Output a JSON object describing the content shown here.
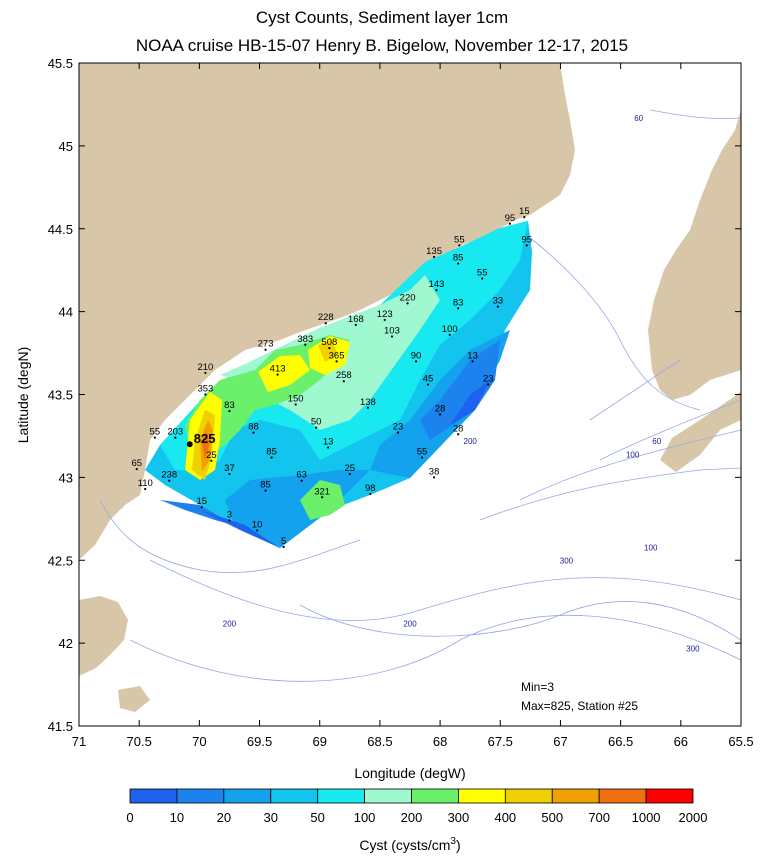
{
  "title": "Cyst Counts, Sediment layer 1cm",
  "subtitle": "NOAA cruise HB-15-07 Henry B. Bigelow, November 12-17, 2015",
  "axes": {
    "xlabel": "Longitude (degW)",
    "ylabel": "Latitude (degN)",
    "xticks": [
      "71",
      "70.5",
      "70",
      "69.5",
      "69",
      "68.5",
      "68",
      "67.5",
      "67",
      "66.5",
      "66",
      "65.5"
    ],
    "yticks": [
      "45.5",
      "45",
      "44.5",
      "44",
      "43.5",
      "43",
      "42.5",
      "42",
      "41.5"
    ]
  },
  "colors": {
    "land": "#d8c6a8",
    "isobath": "#9aa6e6",
    "scale": [
      "#1e62f0",
      "#1c82ee",
      "#14a2ee",
      "#12c4ee",
      "#18e8f0",
      "#a0f8d0",
      "#6af06a",
      "#ffff00",
      "#f0d000",
      "#f0a000",
      "#f07010",
      "#ff0000"
    ]
  },
  "colorbar": {
    "labels": [
      "0",
      "10",
      "20",
      "30",
      "50",
      "100",
      "200",
      "300",
      "400",
      "500",
      "700",
      "1000",
      "2000"
    ],
    "label": "Cyst (cysts/cm",
    "label_sup": "3",
    "label_end": ")"
  },
  "annotations": {
    "min": "Min=3",
    "max": "Max=825, Station #25",
    "highlight": "825"
  },
  "depth_labels": [
    {
      "text": "60",
      "lon": 66.35,
      "lat": 45.15
    },
    {
      "text": "200",
      "lon": 67.75,
      "lat": 43.2
    },
    {
      "text": "60",
      "lon": 66.2,
      "lat": 43.2
    },
    {
      "text": "100",
      "lon": 66.4,
      "lat": 43.12
    },
    {
      "text": "100",
      "lon": 66.25,
      "lat": 42.56
    },
    {
      "text": "300",
      "lon": 66.95,
      "lat": 42.48
    },
    {
      "text": "200",
      "lon": 69.75,
      "lat": 42.1
    },
    {
      "text": "200",
      "lon": 68.25,
      "lat": 42.1
    },
    {
      "text": "300",
      "lon": 65.9,
      "lat": 41.95
    }
  ],
  "stations": [
    {
      "label": "15",
      "lon": 67.3,
      "lat": 44.57
    },
    {
      "label": "95",
      "lon": 67.42,
      "lat": 44.53
    },
    {
      "label": "95",
      "lon": 67.28,
      "lat": 44.4
    },
    {
      "label": "55",
      "lon": 67.84,
      "lat": 44.4
    },
    {
      "label": "135",
      "lon": 68.05,
      "lat": 44.33
    },
    {
      "label": "85",
      "lon": 67.85,
      "lat": 44.29
    },
    {
      "label": "55",
      "lon": 67.65,
      "lat": 44.2
    },
    {
      "label": "143",
      "lon": 68.03,
      "lat": 44.13
    },
    {
      "label": "220",
      "lon": 68.27,
      "lat": 44.05
    },
    {
      "label": "83",
      "lon": 67.85,
      "lat": 44.02
    },
    {
      "label": "33",
      "lon": 67.52,
      "lat": 44.03
    },
    {
      "label": "228",
      "lon": 68.95,
      "lat": 43.93
    },
    {
      "label": "168",
      "lon": 68.7,
      "lat": 43.92
    },
    {
      "label": "123",
      "lon": 68.46,
      "lat": 43.95
    },
    {
      "label": "103",
      "lon": 68.4,
      "lat": 43.85
    },
    {
      "label": "100",
      "lon": 67.92,
      "lat": 43.86
    },
    {
      "label": "273",
      "lon": 69.45,
      "lat": 43.77
    },
    {
      "label": "383",
      "lon": 69.12,
      "lat": 43.8
    },
    {
      "label": "508",
      "lon": 68.92,
      "lat": 43.78
    },
    {
      "label": "365",
      "lon": 68.86,
      "lat": 43.7
    },
    {
      "label": "90",
      "lon": 68.2,
      "lat": 43.7
    },
    {
      "label": "13",
      "lon": 67.73,
      "lat": 43.7
    },
    {
      "label": "210",
      "lon": 69.95,
      "lat": 43.63
    },
    {
      "label": "413",
      "lon": 69.35,
      "lat": 43.62
    },
    {
      "label": "258",
      "lon": 68.8,
      "lat": 43.58
    },
    {
      "label": "45",
      "lon": 68.1,
      "lat": 43.56
    },
    {
      "label": "23",
      "lon": 67.6,
      "lat": 43.56
    },
    {
      "label": "353",
      "lon": 69.95,
      "lat": 43.5
    },
    {
      "label": "150",
      "lon": 69.2,
      "lat": 43.44
    },
    {
      "label": "138",
      "lon": 68.6,
      "lat": 43.42
    },
    {
      "label": "83",
      "lon": 69.75,
      "lat": 43.4
    },
    {
      "label": "28",
      "lon": 68.0,
      "lat": 43.38
    },
    {
      "label": "50",
      "lon": 69.03,
      "lat": 43.3
    },
    {
      "label": "88",
      "lon": 69.55,
      "lat": 43.27
    },
    {
      "label": "23",
      "lon": 68.35,
      "lat": 43.27
    },
    {
      "label": "28",
      "lon": 67.85,
      "lat": 43.26
    },
    {
      "label": "55",
      "lon": 70.37,
      "lat": 43.24
    },
    {
      "label": "203",
      "lon": 70.2,
      "lat": 43.24
    },
    {
      "label": "13",
      "lon": 68.93,
      "lat": 43.18
    },
    {
      "label": "85",
      "lon": 69.4,
      "lat": 43.12
    },
    {
      "label": "55",
      "lon": 68.15,
      "lat": 43.12
    },
    {
      "label": "25",
      "lon": 69.9,
      "lat": 43.1
    },
    {
      "label": "25",
      "lon": 68.75,
      "lat": 43.02
    },
    {
      "label": "38",
      "lon": 68.05,
      "lat": 43.0
    },
    {
      "label": "65",
      "lon": 70.52,
      "lat": 43.05
    },
    {
      "label": "37",
      "lon": 69.75,
      "lat": 43.02
    },
    {
      "label": "63",
      "lon": 69.15,
      "lat": 42.98
    },
    {
      "label": "238",
      "lon": 70.25,
      "lat": 42.98
    },
    {
      "label": "85",
      "lon": 69.45,
      "lat": 42.92
    },
    {
      "label": "98",
      "lon": 68.58,
      "lat": 42.9
    },
    {
      "label": "110",
      "lon": 70.45,
      "lat": 42.93
    },
    {
      "label": "321",
      "lon": 68.98,
      "lat": 42.88
    },
    {
      "label": "15",
      "lon": 69.98,
      "lat": 42.82
    },
    {
      "label": "3",
      "lon": 69.75,
      "lat": 42.74
    },
    {
      "label": "10",
      "lon": 69.52,
      "lat": 42.68
    },
    {
      "label": "5",
      "lon": 69.3,
      "lat": 42.58
    }
  ]
}
